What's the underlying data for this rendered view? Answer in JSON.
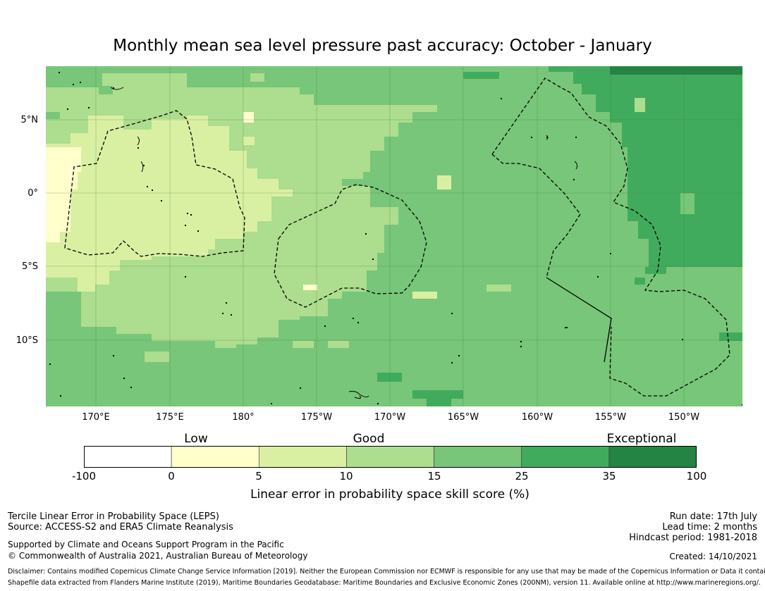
{
  "title": "Monthly mean sea level pressure past accuracy: October - January",
  "map": {
    "lat_labels": [
      "5°N",
      "0°",
      "5°S",
      "10°S"
    ],
    "lon_labels": [
      "170°E",
      "175°E",
      "180°",
      "175°W",
      "170°W",
      "165°W",
      "160°W",
      "155°W",
      "150°W"
    ],
    "colors": {
      "c0": "#ffffcc",
      "c1": "#d9f0a3",
      "c2": "#addd8e",
      "c3": "#78c679",
      "c4": "#41ab5d",
      "c5": "#238443"
    }
  },
  "colorbar": {
    "categories": [
      "Low",
      "Good",
      "Exceptional"
    ],
    "ticks": [
      "-100",
      "0",
      "5",
      "10",
      "15",
      "25",
      "35",
      "100"
    ],
    "colors": [
      "#ffffff",
      "#ffffcc",
      "#d9f0a3",
      "#addd8e",
      "#78c679",
      "#41ab5d",
      "#238443"
    ],
    "label": "Linear error in probability space skill score (%)"
  },
  "footer": {
    "left1": "Tercile Linear Error in Probability Space (LEPS)",
    "left2": "Source: ACCESS-S2 and ERA5 Climate Reanalysis",
    "left3": "Supported by Climate and Oceans Support Program in the Pacific",
    "left4": "© Commonwealth of Australia 2021, Australian Bureau of Meteorology",
    "right1": "Run date: 17th July",
    "right2": "Lead time: 2 months",
    "right3": "Hindcast period: 1981-2018",
    "created": "Created: 14/10/2021",
    "disclaimer1": "Disclaimer: Contains modified Copernicus Climate Change Service Information [2019]. Neither the European Commission nor ECMWF is responsible for any use that may be made of the Copernicus Information or Data it contains.",
    "disclaimer2": "Shapefile data extracted from Flanders Marine Institute (2019), Maritime Boundaries Geodatabase: Maritime Boundaries and Exclusive Economic Zones (200NM), version 11. Available online at http://www.marineregions.org/."
  }
}
